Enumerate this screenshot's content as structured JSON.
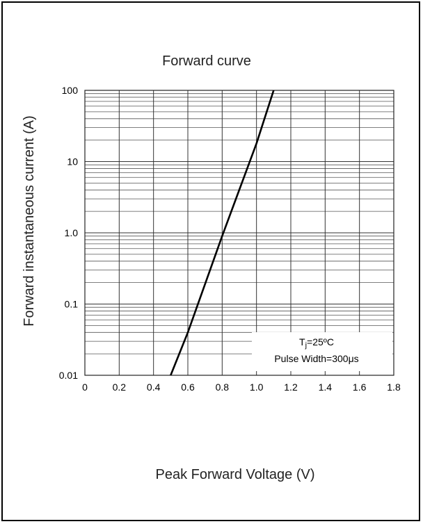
{
  "chart_data": {
    "type": "line",
    "title": "Forward curve",
    "xlabel": "Peak Forward Voltage (V)",
    "ylabel": "Forward instantaneous current (A)",
    "x_scale": "linear",
    "y_scale": "log",
    "xlim": [
      0,
      1.8
    ],
    "ylim": [
      0.01,
      100
    ],
    "x_ticks": [
      "0",
      "0.2",
      "0.4",
      "0.6",
      "0.8",
      "1.0",
      "1.2",
      "1.4",
      "1.6",
      "1.8"
    ],
    "y_ticks": [
      "0.01",
      "0.1",
      "1.0",
      "10",
      "100"
    ],
    "grid": true,
    "series": [
      {
        "x": [
          0.5,
          0.6,
          0.8,
          1.0,
          1.1
        ],
        "y": [
          0.01,
          0.04,
          0.9,
          18,
          100
        ]
      }
    ],
    "annotation": {
      "line1_main": "T",
      "line1_sub": "j",
      "line1_rest": "=25ºC",
      "line2": "Pulse Width=300μs",
      "placement": "bottom-right"
    }
  }
}
